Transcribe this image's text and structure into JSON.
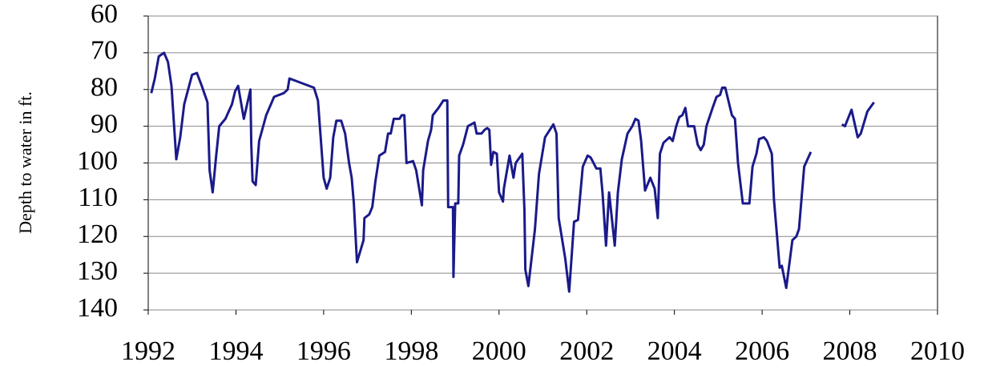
{
  "chart_data": {
    "type": "line",
    "y_label": "Depth to water in ft.",
    "color": "#1a1a8a",
    "invert_y": true,
    "grid": true,
    "xlim": [
      1992,
      2010
    ],
    "xticks": [
      1992,
      1994,
      1996,
      1998,
      2000,
      2002,
      2004,
      2006,
      2008,
      2010
    ],
    "ylim": [
      60,
      140
    ],
    "yticks": [
      60,
      70,
      80,
      90,
      100,
      110,
      120,
      130,
      140
    ],
    "x": [
      1992.07,
      1992.15,
      1992.24,
      1992.36,
      1992.45,
      1992.53,
      1992.64,
      1992.73,
      1992.82,
      1993.0,
      1993.11,
      1993.22,
      1993.35,
      1993.4,
      1993.47,
      1993.55,
      1993.62,
      1993.76,
      1993.91,
      1993.98,
      1994.05,
      1994.18,
      1994.33,
      1994.35,
      1994.38,
      1994.45,
      1994.53,
      1994.69,
      1994.87,
      1995.09,
      1995.18,
      1995.22,
      1995.78,
      1995.87,
      1996.0,
      1996.07,
      1996.15,
      1996.22,
      1996.29,
      1996.4,
      1996.49,
      1996.58,
      1996.64,
      1996.69,
      1996.76,
      1996.91,
      1996.93,
      1997.04,
      1997.11,
      1997.18,
      1997.27,
      1997.4,
      1997.47,
      1997.53,
      1997.6,
      1997.73,
      1997.78,
      1997.84,
      1997.89,
      1998.04,
      1998.11,
      1998.24,
      1998.27,
      1998.38,
      1998.45,
      1998.49,
      1998.62,
      1998.73,
      1998.82,
      1998.84,
      1998.95,
      1998.96,
      1999.0,
      1999.07,
      1999.09,
      1999.18,
      1999.29,
      1999.44,
      1999.49,
      1999.6,
      1999.67,
      1999.73,
      1999.78,
      1999.82,
      1999.87,
      1999.95,
      2000.0,
      2000.09,
      2000.11,
      2000.24,
      2000.33,
      2000.38,
      2000.53,
      2000.58,
      2000.6,
      2000.67,
      2000.82,
      2000.91,
      2001.05,
      2001.24,
      2001.31,
      2001.36,
      2001.51,
      2001.6,
      2001.71,
      2001.8,
      2001.91,
      2002.02,
      2002.09,
      2002.22,
      2002.31,
      2002.36,
      2002.44,
      2002.51,
      2002.64,
      2002.71,
      2002.8,
      2002.93,
      2003.04,
      2003.11,
      2003.18,
      2003.24,
      2003.33,
      2003.45,
      2003.55,
      2003.62,
      2003.67,
      2003.75,
      2003.89,
      2003.96,
      2004.04,
      2004.11,
      2004.18,
      2004.25,
      2004.31,
      2004.45,
      2004.53,
      2004.6,
      2004.67,
      2004.73,
      2004.87,
      2004.96,
      2005.04,
      2005.09,
      2005.16,
      2005.31,
      2005.38,
      2005.45,
      2005.56,
      2005.71,
      2005.78,
      2005.87,
      2005.93,
      2006.04,
      2006.11,
      2006.22,
      2006.27,
      2006.4,
      2006.45,
      2006.55,
      2006.69,
      2006.78,
      2006.84,
      2006.96,
      2007.11,
      2007.45,
      2007.82,
      2007.89,
      2008.04,
      2008.18,
      2008.25,
      2008.4,
      2008.55
    ],
    "values": [
      81,
      77,
      71,
      70,
      72.5,
      79,
      99,
      93,
      84,
      76,
      75.5,
      79,
      83.5,
      102,
      108,
      98,
      90,
      88,
      84,
      80.5,
      79,
      88,
      80,
      95,
      105,
      106,
      94,
      87,
      82,
      81,
      80,
      77,
      79.5,
      83,
      104,
      107,
      104,
      93,
      88.5,
      88.5,
      92,
      100,
      104,
      111,
      127,
      121,
      115,
      114,
      112,
      105,
      98,
      97,
      92,
      92,
      88,
      88,
      87,
      87,
      100,
      99.5,
      102,
      111.5,
      102,
      94,
      91,
      87,
      85,
      83,
      83,
      112,
      112,
      131,
      111,
      111,
      98,
      95,
      90,
      89,
      92,
      92,
      91,
      90.5,
      91,
      100.5,
      97,
      97.5,
      108,
      110.5,
      107,
      98,
      104,
      100,
      97.5,
      113,
      129,
      133.5,
      118,
      103,
      93,
      89.5,
      92,
      115,
      126,
      135,
      116,
      115.5,
      101,
      98,
      98.5,
      101.5,
      101.5,
      108,
      122.5,
      108,
      122.5,
      108,
      99,
      92,
      90,
      88,
      88.5,
      94,
      107.5,
      104,
      107,
      115,
      97.5,
      94.5,
      93,
      94,
      90,
      87.5,
      87,
      85,
      90,
      90,
      95,
      96.5,
      95,
      90,
      85,
      82,
      81.5,
      79.5,
      79.5,
      87,
      88,
      100,
      111,
      111,
      101,
      97.5,
      93.5,
      93,
      94,
      97.5,
      110,
      128.5,
      128,
      134,
      121,
      120,
      118,
      101,
      97,
      null,
      89.5,
      90,
      85.5,
      93,
      92,
      86,
      83.5
    ]
  }
}
